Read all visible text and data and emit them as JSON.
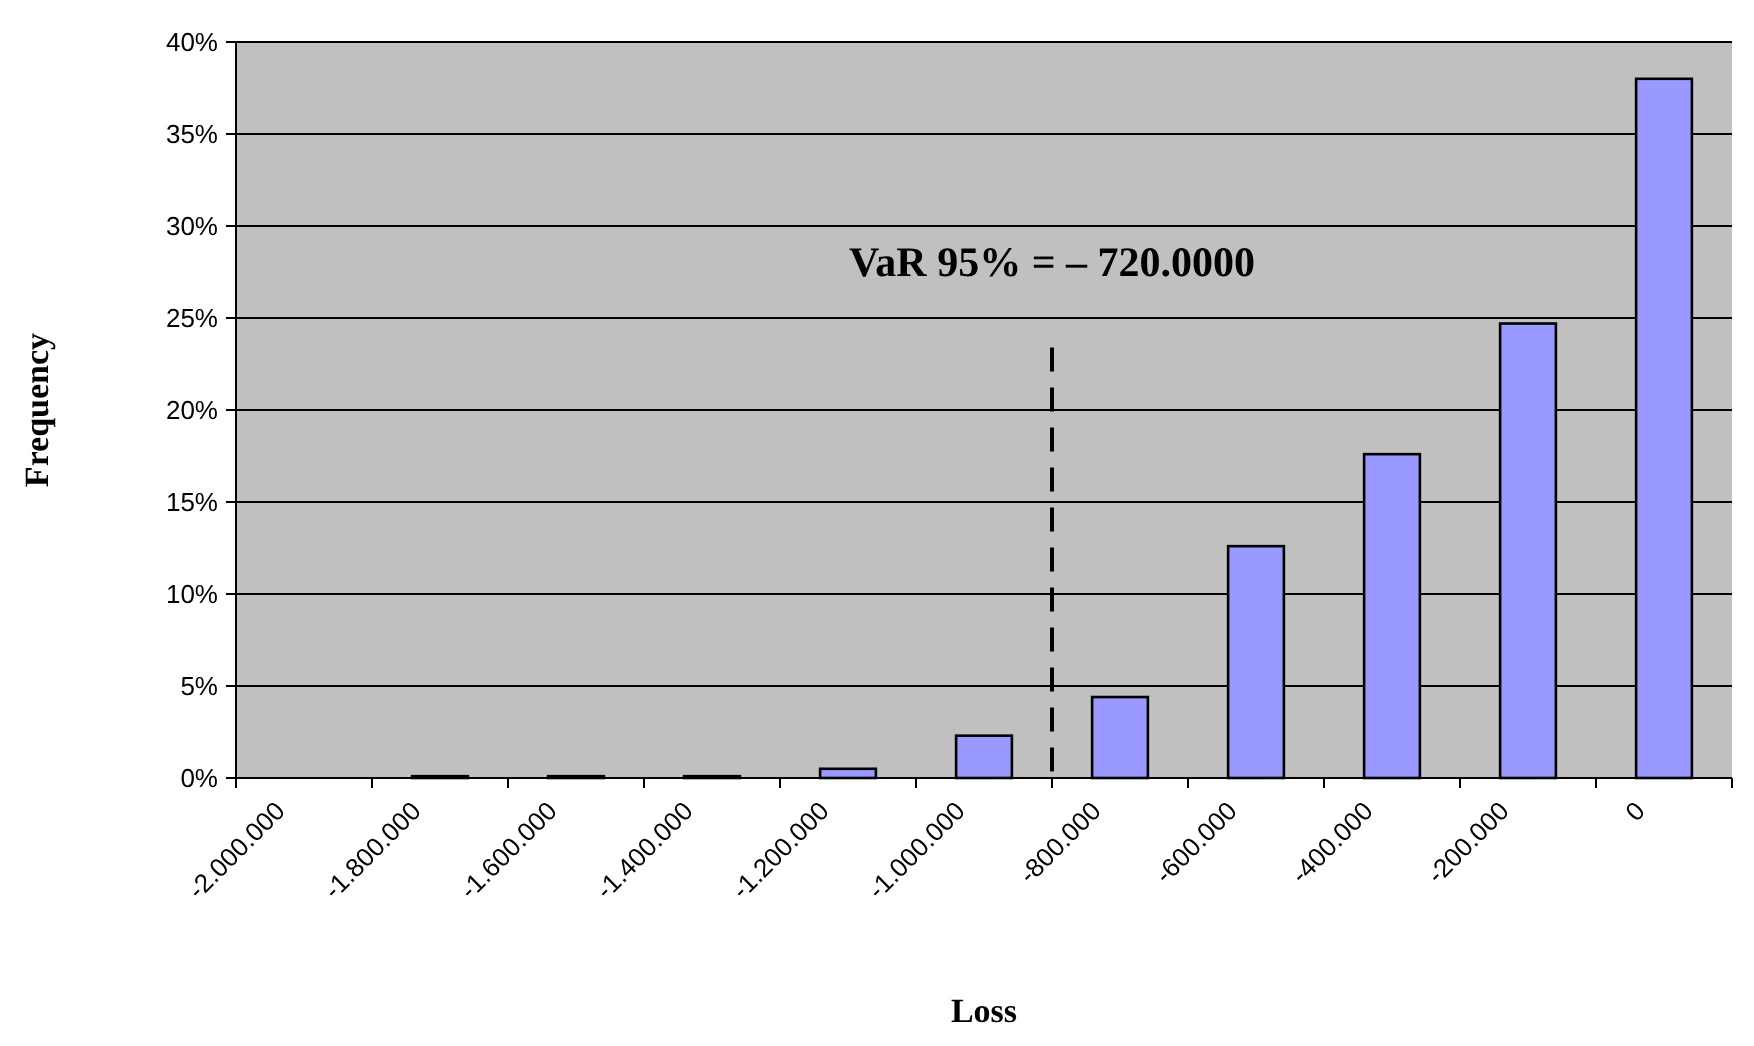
{
  "chart_data": {
    "type": "bar",
    "xlabel": "Loss",
    "ylabel": "Frequency",
    "categories": [
      "-2.000.000",
      "-1.800.000",
      "-1.600.000",
      "-1.400.000",
      "-1.200.000",
      "-1.000.000",
      "-800.000",
      "-600.000",
      "-400.000",
      "-200.000",
      "0"
    ],
    "values": [
      0,
      0.1,
      0.1,
      0.1,
      0.5,
      2.3,
      4.4,
      12.6,
      17.6,
      24.7,
      38.0
    ],
    "color": "#9999ff",
    "ylim": [
      0,
      40
    ],
    "yticks": [
      {
        "value": 0,
        "label": "0%"
      },
      {
        "value": 5,
        "label": "5%"
      },
      {
        "value": 10,
        "label": "10%"
      },
      {
        "value": 15,
        "label": "15%"
      },
      {
        "value": 20,
        "label": "20%"
      },
      {
        "value": 25,
        "label": "25%"
      },
      {
        "value": 30,
        "label": "30%"
      },
      {
        "value": 35,
        "label": "35%"
      },
      {
        "value": 40,
        "label": "40%"
      }
    ],
    "grid": "y",
    "ref_lines": [
      {
        "axis": "x",
        "value": "-800.000",
        "label": "VaR 95% = – 720.0000",
        "line_style": "dashed"
      }
    ]
  }
}
